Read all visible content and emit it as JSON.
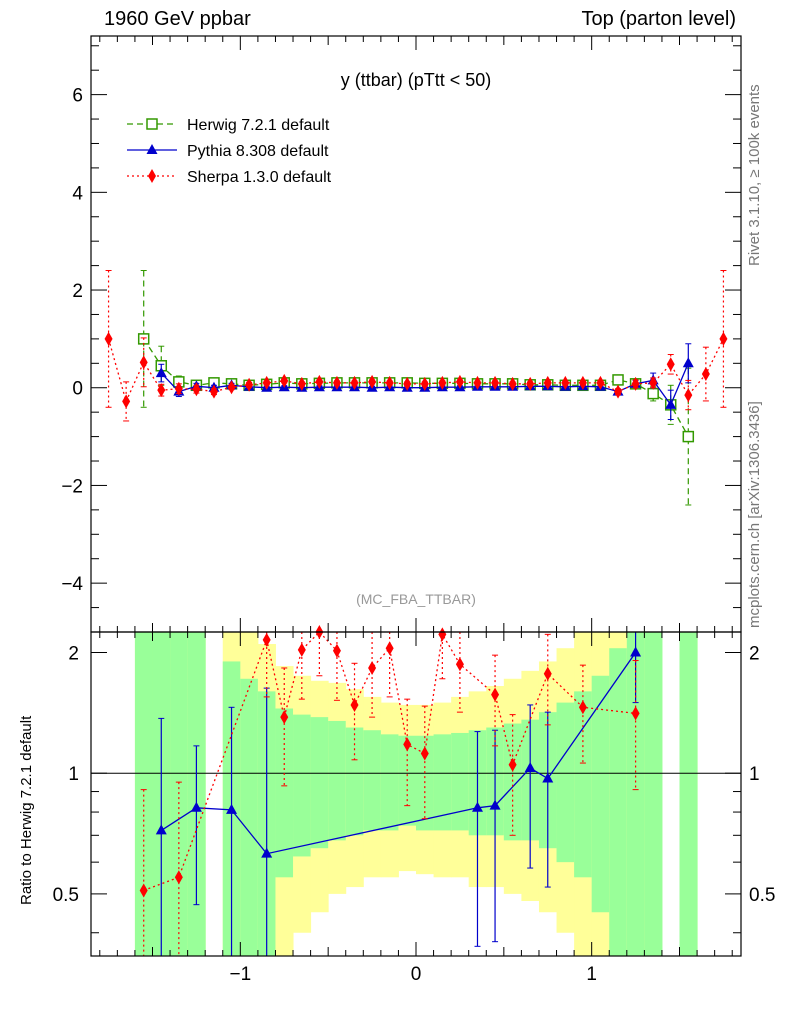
{
  "header": {
    "left": "1960 GeV ppbar",
    "right": "Top (parton level)"
  },
  "side": {
    "rivet": "Rivet 3.1.10, ≥ 100k events",
    "mcplots": "mcplots.cern.ch [arXiv:1306.3436]"
  },
  "chart_data": [
    {
      "type": "line",
      "panel": "main",
      "title": "y (ttbar) (pTtt < 50)",
      "watermark": "(MC_FBA_TTBAR)",
      "xlabel": "",
      "ylabel": "",
      "xlim": [
        -1.85,
        1.85
      ],
      "ylim": [
        -5,
        7.2
      ],
      "yticks": [
        -4,
        -2,
        0,
        2,
        4,
        6
      ],
      "ytick_labels": [
        "−4",
        "−2",
        "0",
        "2",
        "4",
        "6"
      ],
      "legend": [
        "Herwig 7.2.1 default",
        "Pythia 8.308 default",
        "Sherpa 1.3.0 default"
      ],
      "series": [
        {
          "name": "Herwig 7.2.1 default",
          "color": "#339900",
          "style": "dashed",
          "marker": "open-square",
          "x": [
            -1.55,
            -1.45,
            -1.35,
            -1.25,
            -1.15,
            -1.05,
            -0.95,
            -0.85,
            -0.75,
            -0.65,
            -0.55,
            -0.45,
            -0.35,
            -0.25,
            -0.15,
            -0.05,
            0.05,
            0.15,
            0.25,
            0.35,
            0.45,
            0.55,
            0.65,
            0.75,
            0.85,
            0.95,
            1.05,
            1.15,
            1.25,
            1.35,
            1.45,
            1.55
          ],
          "y": [
            1.0,
            0.45,
            0.12,
            0.05,
            0.1,
            0.08,
            0.05,
            0.07,
            0.1,
            0.08,
            0.09,
            0.1,
            0.1,
            0.1,
            0.1,
            0.1,
            0.09,
            0.09,
            0.09,
            0.08,
            0.08,
            0.08,
            0.06,
            0.06,
            0.05,
            0.05,
            0.05,
            0.16,
            0.08,
            -0.12,
            -0.35,
            -1.0
          ],
          "err": [
            1.4,
            0.4,
            0.12,
            0.06,
            0.06,
            0.05,
            0.04,
            0.04,
            0.04,
            0.03,
            0.03,
            0.03,
            0.03,
            0.03,
            0.03,
            0.03,
            0.03,
            0.03,
            0.03,
            0.03,
            0.03,
            0.03,
            0.04,
            0.04,
            0.04,
            0.05,
            0.05,
            0.06,
            0.08,
            0.15,
            0.4,
            1.4
          ]
        },
        {
          "name": "Pythia 8.308 default",
          "color": "#0000cc",
          "style": "solid",
          "marker": "filled-triangle",
          "x": [
            -1.45,
            -1.35,
            -1.25,
            -1.15,
            -1.05,
            -0.95,
            -0.85,
            -0.75,
            -0.65,
            -0.55,
            -0.45,
            -0.35,
            -0.25,
            -0.15,
            -0.05,
            0.05,
            0.15,
            0.25,
            0.35,
            0.45,
            0.55,
            0.65,
            0.75,
            0.85,
            0.95,
            1.05,
            1.15,
            1.25,
            1.35,
            1.45,
            1.55
          ],
          "y": [
            0.3,
            -0.08,
            0.03,
            0.0,
            0.05,
            0.02,
            0.0,
            0.01,
            0.0,
            0.01,
            0.01,
            0.01,
            0.0,
            0.01,
            0.0,
            0.0,
            0.01,
            0.01,
            0.02,
            0.02,
            0.02,
            0.03,
            0.03,
            0.02,
            0.03,
            0.02,
            -0.08,
            0.08,
            0.15,
            -0.35,
            0.5
          ],
          "err": [
            0.18,
            0.1,
            0.06,
            0.05,
            0.04,
            0.04,
            0.03,
            0.03,
            0.03,
            0.03,
            0.03,
            0.03,
            0.03,
            0.03,
            0.03,
            0.03,
            0.03,
            0.03,
            0.03,
            0.03,
            0.03,
            0.03,
            0.03,
            0.03,
            0.04,
            0.04,
            0.05,
            0.07,
            0.15,
            0.3,
            0.4
          ]
        },
        {
          "name": "Sherpa 1.3.0 default",
          "color": "#ff0000",
          "style": "dotted",
          "marker": "filled-diamond",
          "x": [
            -1.75,
            -1.65,
            -1.55,
            -1.45,
            -1.35,
            -1.25,
            -1.15,
            -1.05,
            -0.95,
            -0.85,
            -0.75,
            -0.65,
            -0.55,
            -0.45,
            -0.35,
            -0.25,
            -0.15,
            -0.05,
            0.05,
            0.15,
            0.25,
            0.35,
            0.45,
            0.55,
            0.65,
            0.75,
            0.85,
            0.95,
            1.05,
            1.15,
            1.25,
            1.35,
            1.45,
            1.55,
            1.65,
            1.75
          ],
          "y": [
            1.0,
            -0.28,
            0.52,
            -0.05,
            -0.02,
            -0.03,
            -0.08,
            0.01,
            0.06,
            0.1,
            0.14,
            0.08,
            0.12,
            0.1,
            0.1,
            0.12,
            0.1,
            0.08,
            0.08,
            0.1,
            0.12,
            0.1,
            0.1,
            0.08,
            0.08,
            0.1,
            0.1,
            0.1,
            0.1,
            -0.08,
            0.08,
            0.1,
            0.48,
            -0.15,
            0.28,
            1.0
          ],
          "err": [
            1.4,
            0.4,
            0.5,
            0.12,
            0.1,
            0.08,
            0.06,
            0.05,
            0.05,
            0.04,
            0.04,
            0.04,
            0.04,
            0.04,
            0.04,
            0.04,
            0.04,
            0.04,
            0.04,
            0.04,
            0.04,
            0.04,
            0.04,
            0.04,
            0.04,
            0.04,
            0.04,
            0.04,
            0.05,
            0.06,
            0.08,
            0.1,
            0.2,
            0.3,
            0.55,
            1.4
          ]
        }
      ]
    },
    {
      "type": "line",
      "panel": "ratio",
      "ylabel": "Ratio to Herwig 7.2.1 default",
      "xlim": [
        -1.85,
        1.85
      ],
      "ylim": [
        0.35,
        2.25
      ],
      "yticks": [
        0.5,
        1,
        2
      ],
      "ytick_labels": [
        "0.5",
        "1",
        "2"
      ],
      "xticks": [
        -1,
        0,
        1
      ],
      "xtick_labels": [
        "−1",
        "0",
        "1"
      ],
      "bands": {
        "x_edges": [
          -1.6,
          -1.5,
          -1.4,
          -1.3,
          -1.2,
          -1.1,
          -1.0,
          -0.9,
          -0.8,
          -0.7,
          -0.6,
          -0.5,
          -0.4,
          -0.3,
          -0.2,
          -0.1,
          0.0,
          0.1,
          0.2,
          0.3,
          0.4,
          0.5,
          0.6,
          0.7,
          0.8,
          0.9,
          1.0,
          1.1,
          1.2,
          1.3,
          1.4,
          1.5,
          1.6
        ],
        "green_lo": [
          0.35,
          0.35,
          0.35,
          0.35,
          0.35,
          0.35,
          0.35,
          0.35,
          0.55,
          0.62,
          0.65,
          0.68,
          0.7,
          0.72,
          0.72,
          0.74,
          0.72,
          0.72,
          0.72,
          0.7,
          0.7,
          0.68,
          0.68,
          0.65,
          0.6,
          0.55,
          0.45,
          0.35,
          0.35,
          0.35,
          0.35,
          0.35
        ],
        "green_hi": [
          2.25,
          2.25,
          2.25,
          2.25,
          2.25,
          1.9,
          1.72,
          1.6,
          1.45,
          1.4,
          1.38,
          1.35,
          1.3,
          1.28,
          1.25,
          1.24,
          1.24,
          1.25,
          1.26,
          1.28,
          1.3,
          1.33,
          1.36,
          1.42,
          1.5,
          1.6,
          1.75,
          2.05,
          2.25,
          2.25,
          2.25,
          2.25
        ],
        "yellow_lo": [
          0.35,
          0.35,
          0.35,
          0.35,
          0.35,
          0.35,
          0.35,
          0.35,
          0.35,
          0.4,
          0.45,
          0.5,
          0.52,
          0.55,
          0.55,
          0.57,
          0.56,
          0.55,
          0.55,
          0.52,
          0.52,
          0.5,
          0.48,
          0.45,
          0.4,
          0.35,
          0.35,
          0.35,
          0.35,
          0.35,
          0.35,
          0.35
        ],
        "yellow_hi": [
          2.25,
          2.25,
          2.25,
          2.25,
          2.25,
          2.25,
          2.25,
          2.1,
          1.85,
          1.75,
          1.7,
          1.68,
          1.62,
          1.55,
          1.5,
          1.48,
          1.48,
          1.5,
          1.55,
          1.6,
          1.65,
          1.72,
          1.8,
          1.9,
          2.05,
          2.25,
          2.25,
          2.25,
          2.25,
          2.25,
          2.25,
          2.25
        ],
        "gaps": [
          [
            -1.2,
            -1.1
          ],
          [
            1.4,
            1.5
          ]
        ]
      },
      "series": [
        {
          "name": "Pythia 8.308 default",
          "color": "#0000cc",
          "style": "solid",
          "marker": "filled-triangle",
          "x": [
            -1.45,
            -1.25,
            -1.05,
            -0.85,
            0.35,
            0.45,
            0.65,
            0.75,
            1.25
          ],
          "y": [
            0.72,
            0.82,
            0.81,
            0.63,
            0.82,
            0.83,
            1.03,
            0.97,
            2.0
          ],
          "err": [
            0.65,
            0.35,
            0.65,
            1.0,
            0.45,
            0.45,
            0.45,
            0.45,
            0.5
          ]
        },
        {
          "name": "Sherpa 1.3.0 default",
          "color": "#ff0000",
          "style": "dotted",
          "marker": "filled-diamond",
          "x": [
            -1.55,
            -1.35,
            -0.85,
            -0.75,
            -0.65,
            -0.55,
            -0.45,
            -0.35,
            -0.25,
            -0.15,
            -0.05,
            0.05,
            0.15,
            0.25,
            0.45,
            0.55,
            0.75,
            0.95,
            1.25
          ],
          "y": [
            0.51,
            0.55,
            2.15,
            1.38,
            2.03,
            2.25,
            2.02,
            1.48,
            1.83,
            2.05,
            1.18,
            1.12,
            2.22,
            1.87,
            1.57,
            1.05,
            1.77,
            1.46,
            1.41
          ],
          "err": [
            0.4,
            0.4,
            0.6,
            0.45,
            0.5,
            0.5,
            0.5,
            0.4,
            0.45,
            0.5,
            0.35,
            0.35,
            0.5,
            0.45,
            0.4,
            0.35,
            0.45,
            0.4,
            0.5
          ]
        }
      ]
    }
  ]
}
